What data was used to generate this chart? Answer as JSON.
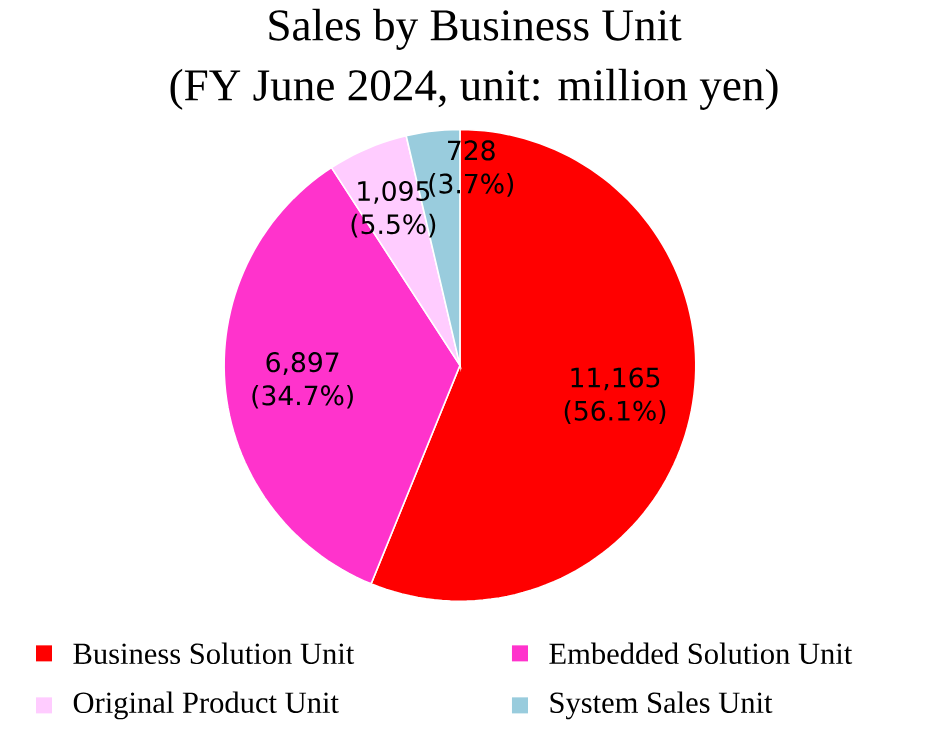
{
  "chart_data": {
    "type": "pie",
    "title": "Sales by Business Unit",
    "subtitle": "(FY June 2024, unit: million yen)",
    "categories": [
      "Business Solution Unit",
      "Embedded Solution Unit",
      "Original Product Unit",
      "System Sales Unit"
    ],
    "values": [
      11165,
      6897,
      1095,
      728
    ],
    "value_labels": [
      "11,165 (56.1%)",
      "6,897 (34.7%)",
      "1,095 (5.5%)",
      "728 (3.7%)"
    ],
    "colors": [
      "#ff0000",
      "#ff33cc",
      "#ffccff",
      "#99ccdd"
    ],
    "legend": "bottom"
  }
}
